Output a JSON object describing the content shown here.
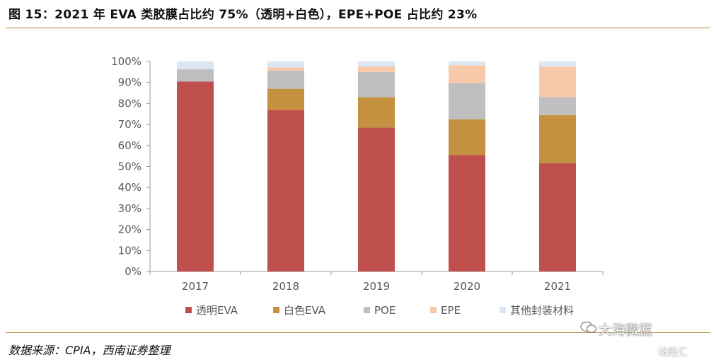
{
  "title": "图 15：2021 年 EVA 类胶膜占比约 75%（透明+白色），EPE+POE 占比约 23%",
  "source": "数据来源：CPIA，西南证券整理",
  "watermark": "大海微蓝",
  "watermark2": "格隆汇",
  "colors": {
    "rule": "#b8863b",
    "transparent_eva": "#c0504d",
    "white_eva": "#c3913f",
    "poe": "#bfbfbf",
    "epe": "#f8c9a8",
    "other": "#dce6f2",
    "axis": "#999999",
    "text": "#595959"
  },
  "chart_data": {
    "type": "bar",
    "stacked": true,
    "categories": [
      "2017",
      "2018",
      "2019",
      "2020",
      "2021"
    ],
    "ylim": [
      0,
      100
    ],
    "yticks": [
      "0%",
      "10%",
      "20%",
      "30%",
      "40%",
      "50%",
      "60%",
      "70%",
      "80%",
      "90%",
      "100%"
    ],
    "series": [
      {
        "name": "透明EVA",
        "color": "#c0504d",
        "values": [
          90.5,
          77,
          68.5,
          55.5,
          51.5
        ]
      },
      {
        "name": "白色EVA",
        "color": "#c3913f",
        "values": [
          0,
          10,
          14.5,
          17,
          23
        ]
      },
      {
        "name": "POE",
        "color": "#bfbfbf",
        "values": [
          5.8,
          8.7,
          12,
          17.2,
          8.5
        ]
      },
      {
        "name": "EPE",
        "color": "#f8c9a8",
        "values": [
          0,
          1.5,
          2.5,
          8.5,
          14.5
        ]
      },
      {
        "name": "其他封装材料",
        "color": "#dce6f2",
        "values": [
          3.7,
          2.8,
          2.5,
          1.8,
          2.5
        ]
      }
    ],
    "legend_position": "bottom",
    "grid": false
  }
}
